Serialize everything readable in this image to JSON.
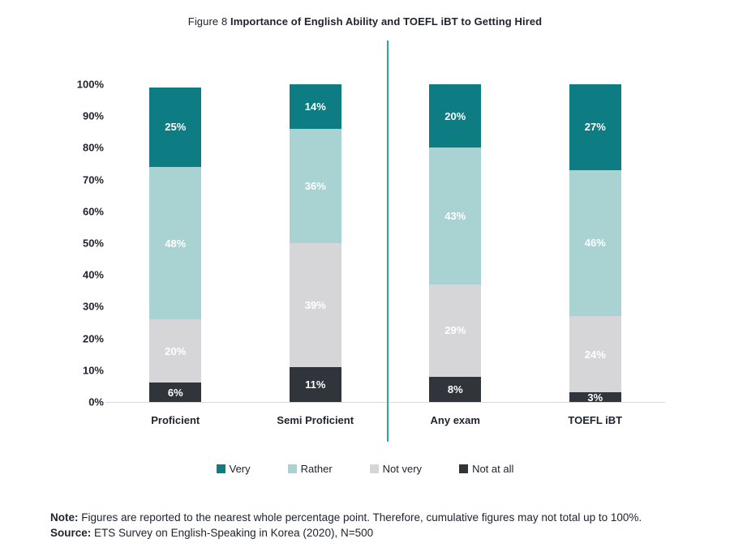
{
  "title": {
    "prefix": "Figure 8",
    "main": "Importance of English Ability and TOEFL iBT to Getting Hired"
  },
  "chart_data": {
    "type": "bar",
    "stacked": true,
    "title": "Figure 8 Importance of English Ability and TOEFL iBT to Getting Hired",
    "categories": [
      "Proficient",
      "Semi Proficient",
      "Any exam",
      "TOEFL iBT"
    ],
    "series": [
      {
        "name": "Very",
        "color": "#0d7c83",
        "values": [
          25,
          14,
          20,
          27
        ]
      },
      {
        "name": "Rather",
        "color": "#a9d2d3",
        "values": [
          48,
          36,
          43,
          46
        ]
      },
      {
        "name": "Not very",
        "color": "#d6d6d9",
        "values": [
          20,
          39,
          29,
          24
        ]
      },
      {
        "name": "Not at all",
        "color": "#30353b",
        "values": [
          6,
          11,
          8,
          3
        ]
      }
    ],
    "xlabel": "",
    "ylabel": "",
    "ylim": [
      0,
      100
    ],
    "yticks": [
      "100%",
      "90%",
      "80%",
      "70%",
      "60%",
      "50%",
      "40%",
      "30%",
      "20%",
      "10%",
      "0%"
    ],
    "value_suffix": "%",
    "grid": false,
    "legend_position": "bottom",
    "divider_after_category_index": 1,
    "divider_color": "#2fa2a4",
    "label_color": "#ffffff",
    "text_color": "#20242f",
    "axis_line_color": "#d9d9d9"
  },
  "note": {
    "label": "Note:",
    "text": "Figures are reported to the nearest whole percentage point. Therefore, cumulative figures may not total up to 100%."
  },
  "source": {
    "label": "Source:",
    "text": "ETS Survey on English-Speaking in Korea (2020), N=500"
  }
}
